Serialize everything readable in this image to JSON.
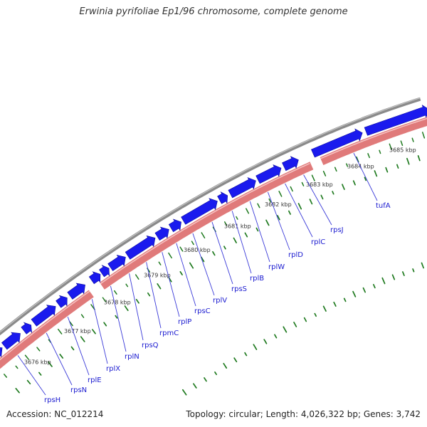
{
  "title": "Erwinia pyrifoliae Ep1/96 chromosome, complete genome",
  "footer": {
    "accession": "Accession: NC_012214",
    "summary": "Topology: circular; Length: 4,026,322 bp; Genes: 3,742"
  },
  "colors": {
    "forward_gene": "#1a1aee",
    "reverse_track": "#e07a7a",
    "backbone": "#8a8a8a",
    "dots": "#1f7a1f",
    "label": "#1a1ad0",
    "leader": "#3a3ad8"
  },
  "ticks": [
    "3676 kbp",
    "3677 kbp",
    "3678 kbp",
    "3679 kbp",
    "3680 kbp",
    "3681 kbp",
    "3682 kbp",
    "3683 kbp",
    "3684 kbp",
    "3685 kbp"
  ],
  "genes": [
    "rpsH",
    "rpsN",
    "rplE",
    "rplX",
    "rplN",
    "rpsQ",
    "rpmC",
    "rplP",
    "rpsC",
    "rplV",
    "rpsS",
    "rplB",
    "rplW",
    "rplD",
    "rplC",
    "rpsJ",
    "tufA"
  ]
}
